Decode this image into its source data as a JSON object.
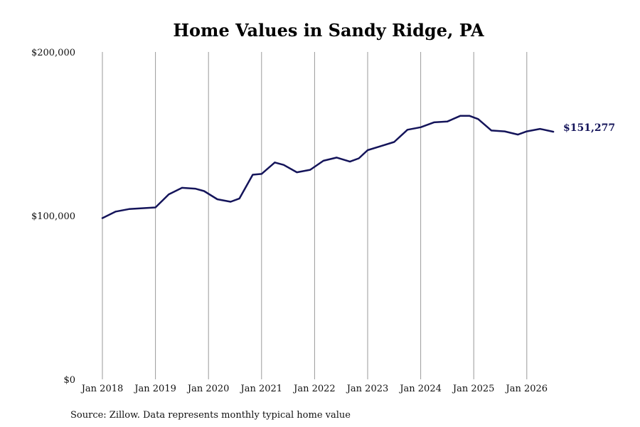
{
  "chart_data": {
    "type": "line",
    "title": "Home Values in Sandy Ridge, PA",
    "xlabel": "",
    "ylabel": "",
    "x_ticks": [
      "Jan 2018",
      "Jan 2019",
      "Jan 2020",
      "Jan 2021",
      "Jan 2022",
      "Jan 2023",
      "Jan 2024",
      "Jan 2025",
      "Jan 2026"
    ],
    "y_ticks": [
      "$0",
      "$100,000",
      "$200,000"
    ],
    "ylim": [
      0,
      200000
    ],
    "xlim": [
      "2018-01",
      "2026-07"
    ],
    "grid": "vertical",
    "line_color": "#14145a",
    "end_label": "$151,277",
    "series": [
      {
        "x": [
          "2018-01",
          "2018-04",
          "2018-07",
          "2018-10",
          "2019-01",
          "2019-04",
          "2019-07",
          "2019-10",
          "2019-12",
          "2020-03",
          "2020-06",
          "2020-08",
          "2020-11",
          "2021-01",
          "2021-04",
          "2021-06",
          "2021-09",
          "2021-12",
          "2022-03",
          "2022-06",
          "2022-09",
          "2022-11",
          "2023-01",
          "2023-04",
          "2023-07",
          "2023-10",
          "2024-01",
          "2024-04",
          "2024-07",
          "2024-10",
          "2024-12",
          "2025-02",
          "2025-05",
          "2025-08",
          "2025-11",
          "2026-01",
          "2026-04",
          "2026-07"
        ],
        "values": [
          98500,
          102500,
          104000,
          104500,
          105000,
          113000,
          117000,
          116500,
          115000,
          110000,
          108500,
          110500,
          125000,
          125500,
          132500,
          131000,
          126500,
          128000,
          133500,
          135500,
          133000,
          135000,
          140000,
          142500,
          145000,
          152500,
          154000,
          157000,
          157500,
          161000,
          161000,
          159000,
          152000,
          151500,
          149500,
          151500,
          153000,
          151277
        ]
      }
    ]
  },
  "source_note": "Source: Zillow. Data represents monthly typical home value"
}
